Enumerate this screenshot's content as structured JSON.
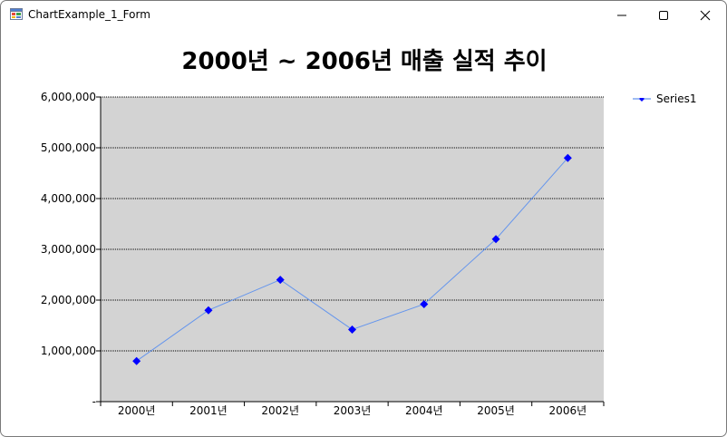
{
  "window": {
    "title": "ChartExample_1_Form",
    "controls": {
      "minimize": "minimize",
      "maximize": "maximize",
      "close": "close"
    }
  },
  "chart_data": {
    "type": "line",
    "title": "2000년 ~ 2006년 매출 실적 추이",
    "xlabel": "",
    "ylabel": "",
    "categories": [
      "2000년",
      "2001년",
      "2002년",
      "2003년",
      "2004년",
      "2005년",
      "2006년"
    ],
    "series": [
      {
        "name": "Series1",
        "values": [
          800000,
          1800000,
          2400000,
          1420000,
          1920000,
          3200000,
          4800000
        ],
        "color": "#0000ff",
        "line_color": "#6495ed"
      }
    ],
    "ylim": [
      0,
      6000000
    ],
    "yticks": [
      0,
      1000000,
      2000000,
      3000000,
      4000000,
      5000000,
      6000000
    ],
    "ytick_labels": [
      "-",
      "1,000,000",
      "2,000,000",
      "3,000,000",
      "4,000,000",
      "5,000,000",
      "6,000,000"
    ],
    "grid": true,
    "plot_background": "#d3d3d3",
    "legend_position": "top-right"
  }
}
